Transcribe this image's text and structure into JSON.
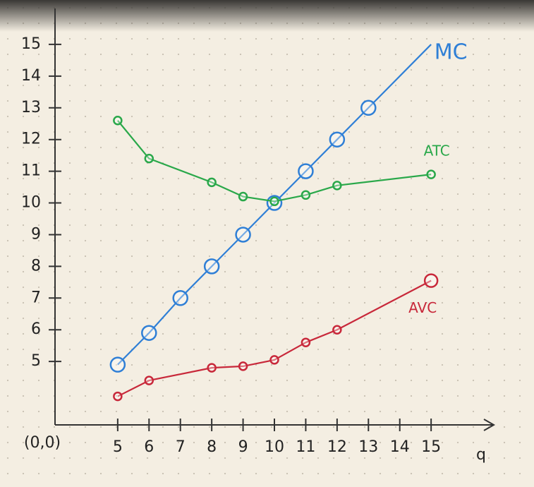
{
  "chart_data": {
    "type": "line",
    "origin_label": "(0,0)",
    "x_label": "q",
    "xlim": [
      3,
      17
    ],
    "ylim": [
      3,
      16
    ],
    "xticks": [
      5,
      6,
      7,
      8,
      9,
      10,
      11,
      12,
      13,
      14,
      15
    ],
    "yticks": [
      5,
      6,
      7,
      8,
      9,
      10,
      11,
      12,
      13,
      14,
      15
    ],
    "series": [
      {
        "name": "MC",
        "color": "#2f7fd6",
        "x": [
          5,
          6,
          7,
          8,
          9,
          10,
          11,
          12,
          13,
          15
        ],
        "values": [
          4.9,
          5.9,
          7,
          8,
          9,
          10,
          11,
          12,
          13,
          15
        ]
      },
      {
        "name": "ATC",
        "color": "#2aa84a",
        "x": [
          5,
          6,
          8,
          9,
          10,
          11,
          12,
          15
        ],
        "values": [
          12.6,
          11.4,
          10.65,
          10.2,
          10.05,
          10.25,
          10.55,
          10.9
        ]
      },
      {
        "name": "AVC",
        "color": "#c8283a",
        "x": [
          5,
          6,
          8,
          9,
          10,
          11,
          12,
          15
        ],
        "values": [
          3.9,
          4.4,
          4.8,
          4.85,
          5.05,
          5.6,
          6.0,
          7.55
        ]
      }
    ]
  }
}
